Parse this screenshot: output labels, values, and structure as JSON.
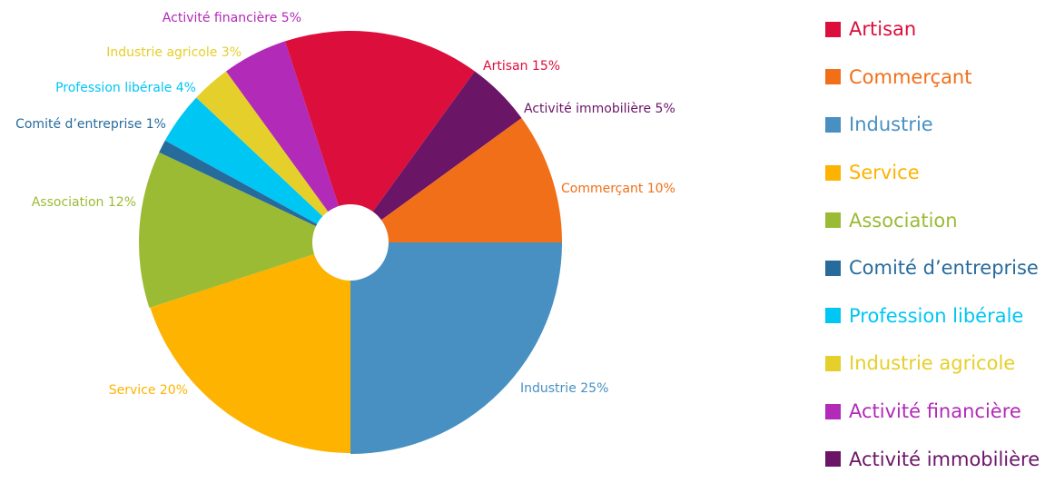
{
  "chart_data": {
    "type": "pie",
    "title": "",
    "donut_hole": true,
    "slices": [
      {
        "name": "Industrie",
        "label": "Industrie 25%",
        "value": 25,
        "color": "#4790c1"
      },
      {
        "name": "Service",
        "label": "Service 20%",
        "value": 20,
        "color": "#fdb300"
      },
      {
        "name": "Association",
        "label": "Association 12%",
        "value": 12,
        "color": "#9bbb35"
      },
      {
        "name": "Comité d’entreprise",
        "label": "Comité d’entreprise 1%",
        "value": 1,
        "color": "#276b9c"
      },
      {
        "name": "Profession libérale",
        "label": "Profession libérale 4%",
        "value": 4,
        "color": "#00c6f4"
      },
      {
        "name": "Industrie agricole",
        "label": "Industrie agricole 3%",
        "value": 3,
        "color": "#e5cf2a"
      },
      {
        "name": "Activité financière",
        "label": "Activité financière 5%",
        "value": 5,
        "color": "#b22ab8"
      },
      {
        "name": "Artisan",
        "label": "Artisan 15%",
        "value": 15,
        "color": "#dc0e3c"
      },
      {
        "name": "Activité immobilière",
        "label": "Activité immobilière 5%",
        "value": 5,
        "color": "#6b1567"
      },
      {
        "name": "Commerçant",
        "label": "Commerçant 10%",
        "value": 10,
        "color": "#f16f18"
      }
    ],
    "legend_position": "right",
    "legend": [
      {
        "label": "Artisan",
        "color": "#dc0e3c"
      },
      {
        "label": "Commerçant",
        "color": "#f16f18"
      },
      {
        "label": "Industrie",
        "color": "#4790c1"
      },
      {
        "label": "Service",
        "color": "#fdb300"
      },
      {
        "label": "Association",
        "color": "#9bbb35"
      },
      {
        "label": "Comité d’entreprise",
        "color": "#276b9c"
      },
      {
        "label": "Profession libérale",
        "color": "#00c6f4"
      },
      {
        "label": "Industrie agricole",
        "color": "#e5cf2a"
      },
      {
        "label": "Activité financière",
        "color": "#b22ab8"
      },
      {
        "label": "Activité immobilière",
        "color": "#6b1567"
      }
    ]
  }
}
